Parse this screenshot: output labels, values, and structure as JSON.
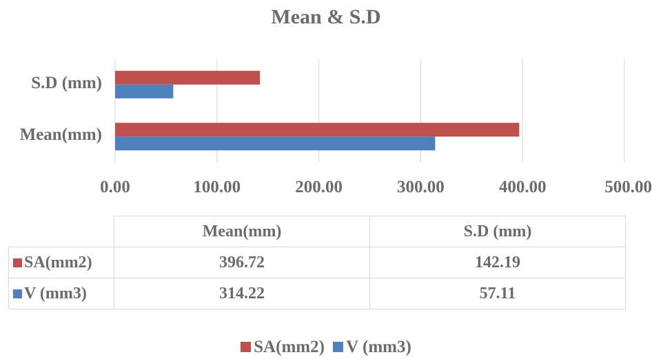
{
  "chart_data": {
    "type": "bar",
    "orientation": "horizontal",
    "title": "Mean & S.D",
    "categories": [
      "Mean(mm)",
      "S.D (mm)"
    ],
    "series": [
      {
        "name": "SA(mm2)",
        "values": [
          396.72,
          142.19
        ],
        "color": "#c0504d"
      },
      {
        "name": "V (mm3)",
        "values": [
          314.22,
          57.11
        ],
        "color": "#4f81bd"
      }
    ],
    "xlim": [
      0,
      500
    ],
    "xticks": [
      "0.00",
      "100.00",
      "200.00",
      "300.00",
      "400.00",
      "500.00"
    ],
    "grid": true,
    "legend_position": "bottom",
    "data_table": {
      "headers": [
        "Mean(mm)",
        "S.D (mm)"
      ],
      "rows": [
        {
          "label": "SA(mm2)",
          "values": [
            "396.72",
            "142.19"
          ]
        },
        {
          "label": "V (mm3)",
          "values": [
            "314.22",
            "57.11"
          ]
        }
      ]
    }
  }
}
